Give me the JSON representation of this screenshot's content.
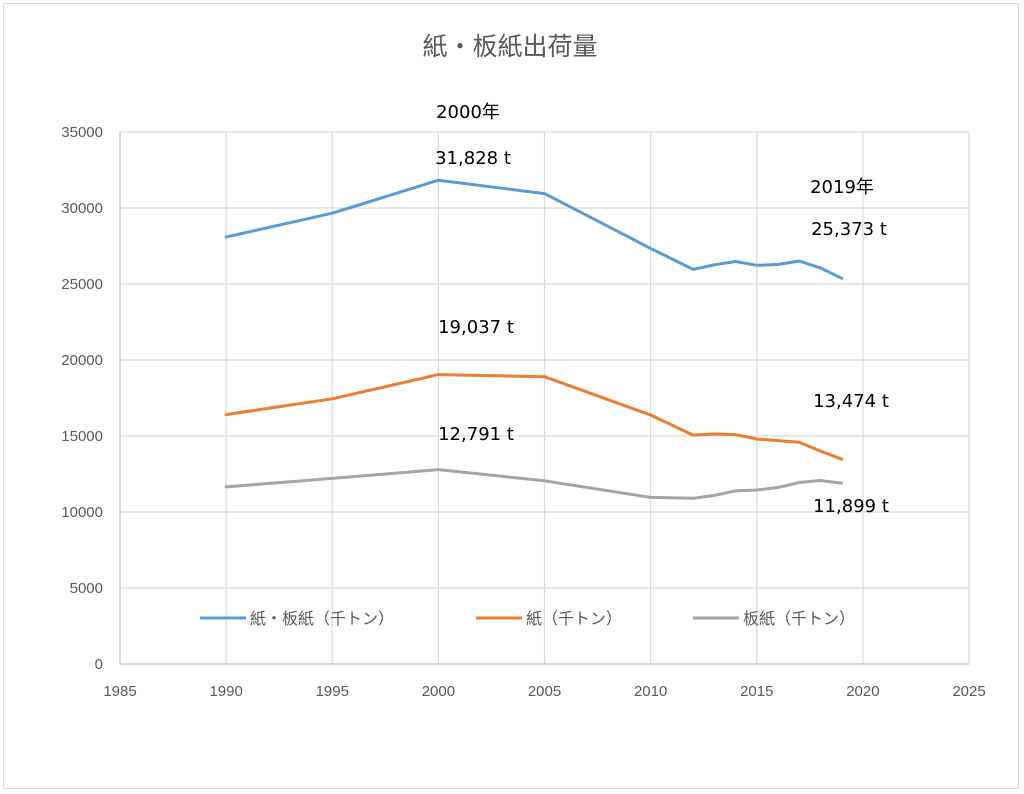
{
  "chart_data": {
    "type": "line",
    "title": "紙・板紙出荷量",
    "xlim": [
      1985,
      2025
    ],
    "ylim": [
      0,
      35000
    ],
    "x_ticks": [
      1985,
      1990,
      1995,
      2000,
      2005,
      2010,
      2015,
      2020,
      2025
    ],
    "y_ticks": [
      0,
      5000,
      10000,
      15000,
      20000,
      25000,
      30000,
      35000
    ],
    "grid": true,
    "legend_position": "bottom",
    "series": [
      {
        "name": "紙・板紙（千トン）",
        "color": "#5B9BD5",
        "x": [
          1990,
          1995,
          2000,
          2005,
          2010,
          2012,
          2013,
          2014,
          2015,
          2016,
          2017,
          2018,
          2019
        ],
        "y": [
          28090,
          29660,
          31828,
          30950,
          27340,
          25960,
          26260,
          26480,
          26230,
          26280,
          26510,
          26060,
          25373
        ]
      },
      {
        "name": "紙（千トン）",
        "color": "#ED7D31",
        "x": [
          1990,
          1995,
          2000,
          2005,
          2010,
          2012,
          2013,
          2014,
          2015,
          2016,
          2017,
          2018,
          2019
        ],
        "y": [
          16410,
          17450,
          19037,
          18900,
          16380,
          15060,
          15130,
          15090,
          14800,
          14700,
          14590,
          14010,
          13474
        ]
      },
      {
        "name": "板紙（千トン）",
        "color": "#A5A5A5",
        "x": [
          1990,
          1995,
          2000,
          2005,
          2010,
          2012,
          2013,
          2014,
          2015,
          2016,
          2017,
          2018,
          2019
        ],
        "y": [
          11650,
          12210,
          12791,
          12050,
          10960,
          10900,
          11090,
          11390,
          11450,
          11610,
          11940,
          12070,
          11899
        ]
      }
    ],
    "annotations": [
      {
        "id": "a2000",
        "text": "2000年"
      },
      {
        "id": "v31828",
        "text": "31,828 t"
      },
      {
        "id": "a2019",
        "text": "2019年"
      },
      {
        "id": "v25373",
        "text": "25,373 t"
      },
      {
        "id": "v19037",
        "text": "19,037 t"
      },
      {
        "id": "v13474",
        "text": "13,474 t"
      },
      {
        "id": "v12791",
        "text": "12,791 t"
      },
      {
        "id": "v11899",
        "text": "11,899 t"
      }
    ]
  }
}
